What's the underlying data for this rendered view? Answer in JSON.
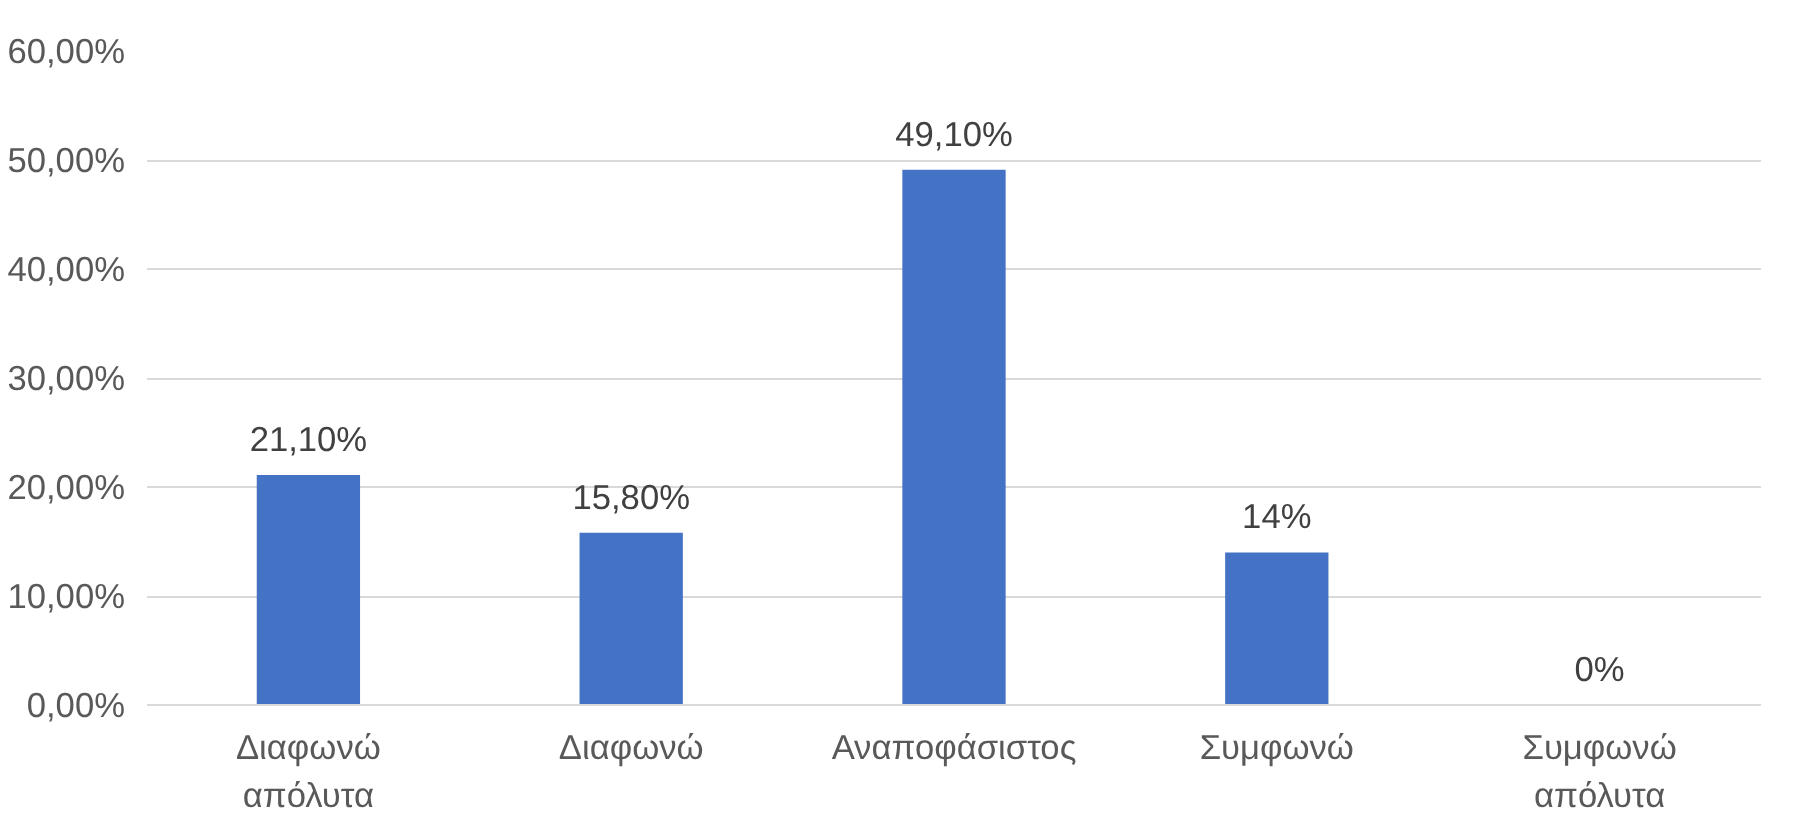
{
  "chart_data": {
    "type": "bar",
    "categories": [
      "Διαφωνώ\nαπόλυτα",
      "Διαφωνώ",
      "Αναποφάσιστος",
      "Συμφωνώ",
      "Συμφωνώ\nαπόλυτα"
    ],
    "values": [
      21.1,
      15.8,
      49.1,
      14,
      0
    ],
    "value_labels": [
      "21,10%",
      "15,80%",
      "49,10%",
      "14%",
      "0%"
    ],
    "color": "#4472c4",
    "ylim": [
      0,
      60
    ],
    "yticks": [
      {
        "value": 0,
        "label": "0,00%"
      },
      {
        "value": 10,
        "label": "10,00%"
      },
      {
        "value": 20,
        "label": "20,00%"
      },
      {
        "value": 30,
        "label": "30,00%"
      },
      {
        "value": 40,
        "label": "40,00%"
      },
      {
        "value": 50,
        "label": "50,00%"
      },
      {
        "value": 60,
        "label": "60,00%"
      }
    ],
    "grid": "y"
  }
}
